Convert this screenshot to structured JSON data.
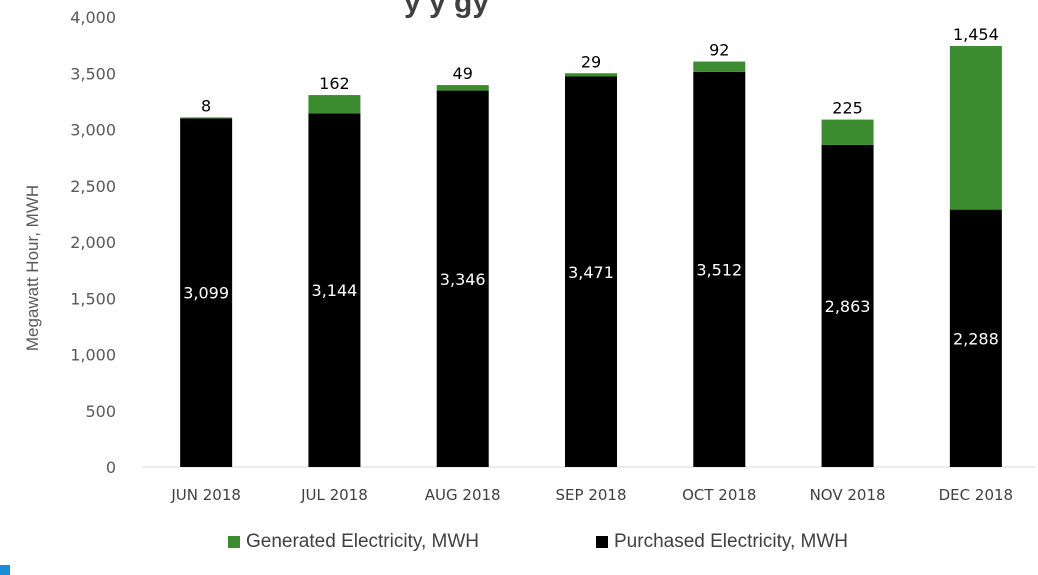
{
  "chart_data": {
    "type": "bar",
    "stacked": true,
    "title": "y      y    gy",
    "ylabel": "Megawatt Hour, MWH",
    "xlabel": "",
    "ylim": [
      0,
      4000
    ],
    "yticks": [
      "0",
      "500",
      "1,000",
      "1,500",
      "2,000",
      "2,500",
      "3,000",
      "3,500",
      "4,000"
    ],
    "categories": [
      "JUN 2018",
      "JUL 2018",
      "AUG 2018",
      "SEP 2018",
      "OCT 2018",
      "NOV 2018",
      "DEC 2018"
    ],
    "series": [
      {
        "name": "Purchased Electricity, MWH",
        "color": "#000000",
        "values": [
          3099,
          3144,
          3346,
          3471,
          3512,
          2863,
          2288
        ],
        "labels": [
          "3,099",
          "3,144",
          "3,346",
          "3,471",
          "3,512",
          "2,863",
          "2,288"
        ]
      },
      {
        "name": "Generated Electricity, MWH",
        "color": "#3b8b2f",
        "values": [
          8,
          162,
          49,
          29,
          92,
          225,
          1454
        ],
        "labels": [
          "8",
          "162",
          "49",
          "29",
          "92",
          "225",
          "1,454"
        ]
      }
    ],
    "legend": {
      "position": "bottom",
      "items": [
        "Generated Electricity, MWH",
        "Purchased Electricity, MWH"
      ]
    },
    "grid": false
  }
}
